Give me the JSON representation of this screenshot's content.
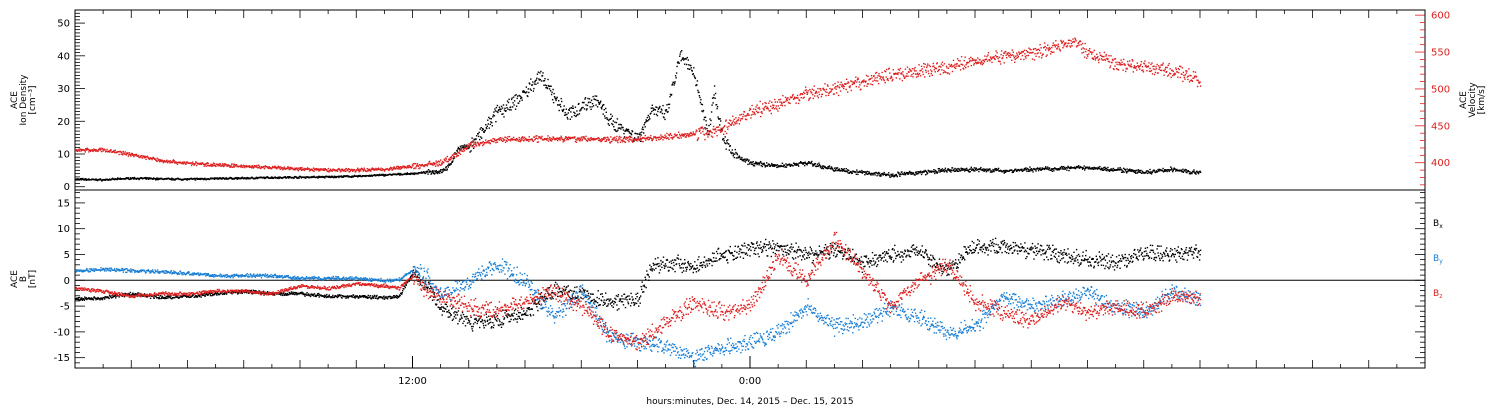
{
  "chart_data": [
    {
      "type": "scatter",
      "panel": "top",
      "ylabel_left": [
        "ACE",
        "Ion Density",
        "[cm⁻³]"
      ],
      "ylabel_right": [
        "ACE",
        "Velocity",
        "[km/s]"
      ],
      "yticks_left": [
        0,
        10,
        20,
        30,
        40,
        50
      ],
      "ylim_left": [
        -1,
        54
      ],
      "yticks_right": [
        400,
        450,
        500,
        550,
        600
      ],
      "ylim_right": [
        363,
        607
      ],
      "right_axis_color": "#dd2020",
      "series": [
        {
          "axis": "left",
          "color": "#000000",
          "points": [
            [
              0,
              2.5
            ],
            [
              1,
              2.3
            ],
            [
              2,
              2.8
            ],
            [
              3,
              2.6
            ],
            [
              4,
              2.5
            ],
            [
              5,
              2.7
            ],
            [
              6,
              2.8
            ],
            [
              7,
              3.0
            ],
            [
              8,
              3.1
            ],
            [
              9,
              3.2
            ],
            [
              10,
              3.4
            ],
            [
              11,
              3.8
            ],
            [
              12,
              4.2
            ],
            [
              12.5,
              4.6
            ],
            [
              13,
              5.0
            ],
            [
              13.3,
              6.5
            ],
            [
              13.6,
              12
            ],
            [
              14,
              12.5
            ],
            [
              14.5,
              17
            ],
            [
              15,
              23
            ],
            [
              15.5,
              25
            ],
            [
              16,
              29
            ],
            [
              16.5,
              34
            ],
            [
              17,
              28
            ],
            [
              17.5,
              22
            ],
            [
              18,
              25
            ],
            [
              18.5,
              27
            ],
            [
              19,
              20
            ],
            [
              19.5,
              18
            ],
            [
              20,
              15
            ],
            [
              20.5,
              24
            ],
            [
              21,
              22
            ],
            [
              21.5,
              40
            ],
            [
              22,
              35
            ],
            [
              22.5,
              16
            ],
            [
              22.7,
              30
            ],
            [
              23,
              16
            ],
            [
              23.3,
              11
            ],
            [
              23.7,
              8.5
            ],
            [
              24,
              7.5
            ],
            [
              25,
              6.5
            ],
            [
              26,
              7.5
            ],
            [
              27,
              5.5
            ],
            [
              28,
              4.5
            ],
            [
              29,
              3.8
            ],
            [
              30,
              4.5
            ],
            [
              31,
              5.2
            ],
            [
              32,
              5.5
            ],
            [
              33,
              5.0
            ],
            [
              34,
              5.5
            ],
            [
              35,
              5.8
            ],
            [
              36,
              6.0
            ],
            [
              37,
              5.5
            ],
            [
              38,
              4.5
            ],
            [
              39,
              5.5
            ],
            [
              40,
              4.3
            ]
          ]
        },
        {
          "axis": "right",
          "color": "#dd2020",
          "points": [
            [
              0,
              418
            ],
            [
              1,
              418
            ],
            [
              2,
              412
            ],
            [
              3,
              404
            ],
            [
              4,
              400
            ],
            [
              5,
              398
            ],
            [
              6,
              396
            ],
            [
              7,
              394
            ],
            [
              8,
              392
            ],
            [
              9,
              391
            ],
            [
              10,
              391
            ],
            [
              11,
              392
            ],
            [
              12,
              396
            ],
            [
              13,
              401
            ],
            [
              13.5,
              410
            ],
            [
              14,
              425
            ],
            [
              14.5,
              428
            ],
            [
              15,
              432
            ],
            [
              16,
              433
            ],
            [
              17,
              434
            ],
            [
              18,
              433
            ],
            [
              19,
              432
            ],
            [
              20,
              433
            ],
            [
              21,
              436
            ],
            [
              22,
              440
            ],
            [
              22.5,
              442
            ],
            [
              23,
              447
            ],
            [
              24,
              470
            ],
            [
              25,
              480
            ],
            [
              26,
              495
            ],
            [
              27,
              500
            ],
            [
              28,
              510
            ],
            [
              29,
              520
            ],
            [
              30,
              525
            ],
            [
              31,
              530
            ],
            [
              32,
              540
            ],
            [
              33,
              545
            ],
            [
              34,
              550
            ],
            [
              35,
              560
            ],
            [
              35.5,
              565
            ],
            [
              36,
              550
            ],
            [
              37,
              535
            ],
            [
              38,
              530
            ],
            [
              39,
              525
            ],
            [
              39.8,
              515
            ],
            [
              40,
              508
            ]
          ]
        }
      ]
    },
    {
      "type": "scatter",
      "panel": "bottom",
      "ylabel_left": [
        "ACE",
        "B",
        "[nT]"
      ],
      "yticks_left": [
        -15,
        -10,
        -5,
        0,
        5,
        10,
        15
      ],
      "ylim_left": [
        -17,
        17.5
      ],
      "zero_line": true,
      "legend": [
        {
          "label": "B",
          "sub": "x",
          "color": "#000000"
        },
        {
          "label": "B",
          "sub": "y",
          "color": "#1a7fd4"
        },
        {
          "label": "B",
          "sub": "z",
          "color": "#dd2020"
        }
      ],
      "series": [
        {
          "name": "Bx",
          "color": "#000000",
          "points": [
            [
              0,
              -3.5
            ],
            [
              1,
              -3.3
            ],
            [
              2,
              -2.5
            ],
            [
              3,
              -3.2
            ],
            [
              4,
              -3.0
            ],
            [
              5,
              -2.5
            ],
            [
              6,
              -2.0
            ],
            [
              7,
              -2.5
            ],
            [
              8,
              -2.5
            ],
            [
              9,
              -3.0
            ],
            [
              10,
              -3.0
            ],
            [
              11,
              -3.2
            ],
            [
              11.5,
              -3.0
            ],
            [
              12,
              1.5
            ],
            [
              12.5,
              -1.0
            ],
            [
              13,
              -5.0
            ],
            [
              14,
              -8.0
            ],
            [
              15,
              -7.5
            ],
            [
              16,
              -6.5
            ],
            [
              17,
              -1.5
            ],
            [
              18,
              -2.5
            ],
            [
              19,
              -4.0
            ],
            [
              20,
              -3.5
            ],
            [
              20.5,
              3.0
            ],
            [
              21,
              3.5
            ],
            [
              22,
              3.0
            ],
            [
              23,
              5.0
            ],
            [
              24,
              6.0
            ],
            [
              25,
              6.5
            ],
            [
              26,
              5.0
            ],
            [
              27,
              6.0
            ],
            [
              28,
              3.5
            ],
            [
              29,
              5.0
            ],
            [
              30,
              6.0
            ],
            [
              31,
              2.0
            ],
            [
              32,
              7.0
            ],
            [
              33,
              6.5
            ],
            [
              34,
              6.0
            ],
            [
              35,
              5.0
            ],
            [
              36,
              4.0
            ],
            [
              37,
              3.5
            ],
            [
              38,
              5.5
            ],
            [
              39,
              5.0
            ],
            [
              40,
              5.8
            ]
          ]
        },
        {
          "name": "By",
          "color": "#1a7fd4",
          "points": [
            [
              0,
              2.0
            ],
            [
              1,
              2.2
            ],
            [
              2,
              2.0
            ],
            [
              3,
              1.8
            ],
            [
              4,
              1.5
            ],
            [
              5,
              1.0
            ],
            [
              6,
              1.0
            ],
            [
              7,
              1.0
            ],
            [
              8,
              0.5
            ],
            [
              9,
              0.5
            ],
            [
              10,
              0.5
            ],
            [
              11,
              0.0
            ],
            [
              11.5,
              0.2
            ],
            [
              12,
              2.0
            ],
            [
              12.5,
              1.0
            ],
            [
              13,
              -3.0
            ],
            [
              14,
              0.0
            ],
            [
              15,
              3.0
            ],
            [
              16,
              0.0
            ],
            [
              17,
              -7.0
            ],
            [
              18,
              -2.0
            ],
            [
              19,
              -11.0
            ],
            [
              20,
              -12.0
            ],
            [
              21,
              -12.5
            ],
            [
              22,
              -15.0
            ],
            [
              23,
              -13.0
            ],
            [
              24,
              -12.0
            ],
            [
              25,
              -10.0
            ],
            [
              26,
              -5.0
            ],
            [
              27,
              -9.0
            ],
            [
              28,
              -8.0
            ],
            [
              29,
              -5.0
            ],
            [
              30,
              -7.0
            ],
            [
              31,
              -10.0
            ],
            [
              32,
              -9.0
            ],
            [
              33,
              -3.0
            ],
            [
              34,
              -5.0
            ],
            [
              35,
              -4.0
            ],
            [
              36,
              -2.0
            ],
            [
              37,
              -5.0
            ],
            [
              38,
              -6.0
            ],
            [
              39,
              -2.0
            ],
            [
              40,
              -3.5
            ]
          ]
        },
        {
          "name": "Bz",
          "color": "#dd2020",
          "points": [
            [
              0,
              -1.5
            ],
            [
              1,
              -2.0
            ],
            [
              2,
              -3.0
            ],
            [
              3,
              -2.5
            ],
            [
              4,
              -2.5
            ],
            [
              5,
              -2.0
            ],
            [
              6,
              -2.0
            ],
            [
              7,
              -2.5
            ],
            [
              8,
              -1.0
            ],
            [
              9,
              -1.5
            ],
            [
              10,
              -0.5
            ],
            [
              11,
              -1.0
            ],
            [
              11.5,
              -1.5
            ],
            [
              12,
              1.0
            ],
            [
              12.5,
              -2.0
            ],
            [
              13,
              -3.0
            ],
            [
              14,
              -5.0
            ],
            [
              15,
              -6.0
            ],
            [
              16,
              -4.0
            ],
            [
              17,
              -2.0
            ],
            [
              18,
              -5.0
            ],
            [
              19,
              -10.0
            ],
            [
              20,
              -12.0
            ],
            [
              21,
              -8.0
            ],
            [
              22,
              -4.0
            ],
            [
              23,
              -6.0
            ],
            [
              24,
              -5.0
            ],
            [
              25,
              5.0
            ],
            [
              26,
              0.0
            ],
            [
              27,
              8.0
            ],
            [
              28,
              2.0
            ],
            [
              29,
              -5.0
            ],
            [
              30,
              0.0
            ],
            [
              31,
              3.0
            ],
            [
              32,
              -4.0
            ],
            [
              33,
              -6.0
            ],
            [
              34,
              -8.0
            ],
            [
              35,
              -4.0
            ],
            [
              36,
              -6.0
            ],
            [
              37,
              -5.0
            ],
            [
              38,
              -6.0
            ],
            [
              39,
              -3.0
            ],
            [
              40,
              -3.5
            ]
          ]
        }
      ]
    }
  ],
  "x_axis": {
    "title": "hours:minutes, Dec. 14, 2015 – Dec. 15, 2015",
    "labeled_ticks": [
      {
        "hour": 12,
        "label": "12:00"
      },
      {
        "hour": 24,
        "label": "0:00"
      }
    ],
    "xlim": [
      0,
      48
    ],
    "major_tick_every_hours": 2,
    "minor_tick_every_hours": 1
  },
  "colors": {
    "axes": "#000000",
    "red": "#dd2020",
    "blue": "#1a7fd4",
    "black": "#000000"
  }
}
